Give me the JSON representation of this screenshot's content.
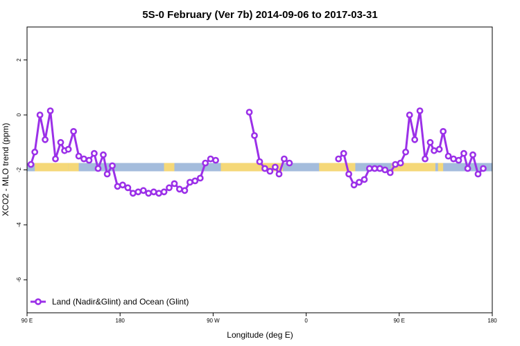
{
  "chart_data": {
    "type": "line",
    "title": "5S-0 February (Ver 7b)   2014-09-06 to 2017-03-31",
    "xlabel": "Longitude (deg E)",
    "ylabel": "XCO2 - MLO trend (ppm)",
    "xlim": [
      90,
      450
    ],
    "ylim": [
      -7.2,
      3.2
    ],
    "x_ticks": [
      {
        "value": 90,
        "label": "90 E"
      },
      {
        "value": 162,
        "label": "180"
      },
      {
        "value": 234,
        "label": "90 W"
      },
      {
        "value": 306,
        "label": "0"
      },
      {
        "value": 378,
        "label": "90 E"
      },
      {
        "value": 450,
        "label": "180"
      }
    ],
    "y_ticks": [
      {
        "value": 2,
        "label": "2"
      },
      {
        "value": 0,
        "label": "0"
      },
      {
        "value": -2,
        "label": "-2"
      },
      {
        "value": -4,
        "label": "-4"
      },
      {
        "value": -6,
        "label": "-6"
      }
    ],
    "grid": false,
    "legend_position": "bottom-left",
    "series": [
      {
        "name": "Land (Nadir&Glint) and Ocean (Glint)",
        "color": "#9b30e8",
        "segments": [
          [
            [
              93,
              -1.8
            ],
            [
              96,
              -1.35
            ],
            [
              100,
              0.0
            ],
            [
              104,
              -0.9
            ],
            [
              108,
              0.15
            ],
            [
              112,
              -1.6
            ],
            [
              116,
              -1.0
            ],
            [
              119,
              -1.3
            ],
            [
              122,
              -1.25
            ],
            [
              126,
              -0.6
            ],
            [
              130,
              -1.5
            ],
            [
              134,
              -1.6
            ],
            [
              138,
              -1.65
            ],
            [
              142,
              -1.4
            ],
            [
              145,
              -1.95
            ],
            [
              149,
              -1.45
            ],
            [
              152,
              -2.15
            ],
            [
              156,
              -1.85
            ],
            [
              160,
              -2.6
            ],
            [
              164,
              -2.55
            ],
            [
              168,
              -2.65
            ],
            [
              172,
              -2.85
            ],
            [
              176,
              -2.8
            ],
            [
              180,
              -2.75
            ],
            [
              184,
              -2.85
            ],
            [
              188,
              -2.8
            ],
            [
              192,
              -2.85
            ],
            [
              196,
              -2.8
            ],
            [
              200,
              -2.65
            ],
            [
              204,
              -2.5
            ],
            [
              208,
              -2.7
            ],
            [
              212,
              -2.75
            ],
            [
              216,
              -2.45
            ],
            [
              220,
              -2.4
            ],
            [
              224,
              -2.3
            ],
            [
              228,
              -1.75
            ],
            [
              232,
              -1.6
            ],
            [
              236,
              -1.65
            ]
          ],
          [
            [
              262,
              0.1
            ],
            [
              266,
              -0.75
            ],
            [
              270,
              -1.7
            ],
            [
              274,
              -1.95
            ],
            [
              278,
              -2.05
            ],
            [
              282,
              -1.9
            ],
            [
              285,
              -2.15
            ],
            [
              289,
              -1.6
            ],
            [
              293,
              -1.75
            ]
          ],
          [
            [
              331,
              -1.6
            ],
            [
              335,
              -1.4
            ],
            [
              339,
              -2.15
            ],
            [
              343,
              -2.55
            ],
            [
              347,
              -2.45
            ],
            [
              351,
              -2.35
            ],
            [
              355,
              -1.95
            ],
            [
              359,
              -1.95
            ],
            [
              363,
              -1.95
            ],
            [
              367,
              -2.0
            ],
            [
              371,
              -2.1
            ],
            [
              375,
              -1.8
            ],
            [
              379,
              -1.75
            ],
            [
              383,
              -1.35
            ],
            [
              386,
              0.0
            ],
            [
              390,
              -0.9
            ],
            [
              394,
              0.15
            ],
            [
              398,
              -1.6
            ],
            [
              402,
              -1.0
            ],
            [
              405,
              -1.3
            ],
            [
              409,
              -1.25
            ],
            [
              412,
              -0.6
            ],
            [
              416,
              -1.5
            ],
            [
              420,
              -1.6
            ],
            [
              424,
              -1.65
            ],
            [
              428,
              -1.4
            ],
            [
              431,
              -1.95
            ],
            [
              435,
              -1.45
            ],
            [
              439,
              -2.15
            ],
            [
              443,
              -1.95
            ]
          ]
        ]
      }
    ],
    "background_band": {
      "y_center": -1.9,
      "ocean_color": "#a4bcdc",
      "land_color": "#f5d878",
      "land_ranges": [
        [
          96,
          122
        ],
        [
          122,
          130
        ],
        [
          196,
          204
        ],
        [
          240,
          288
        ],
        [
          316,
          344
        ],
        [
          372,
          406
        ],
        [
          408,
          412
        ]
      ]
    }
  }
}
